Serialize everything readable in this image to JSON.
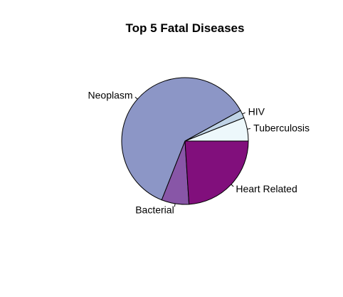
{
  "chart_data": {
    "type": "pie",
    "title": "Top 5 Fatal Diseases",
    "slices": [
      {
        "label": "Tuberculosis",
        "value": 6,
        "color": "#edf8fb"
      },
      {
        "label": "HIV",
        "value": 2,
        "color": "#bfd3e6"
      },
      {
        "label": "Neoplasm",
        "value": 61,
        "color": "#8c96c6"
      },
      {
        "label": "Bacterial",
        "value": 7,
        "color": "#8856a7"
      },
      {
        "label": "Heart Related",
        "value": 24,
        "color": "#810f7c"
      }
    ]
  }
}
